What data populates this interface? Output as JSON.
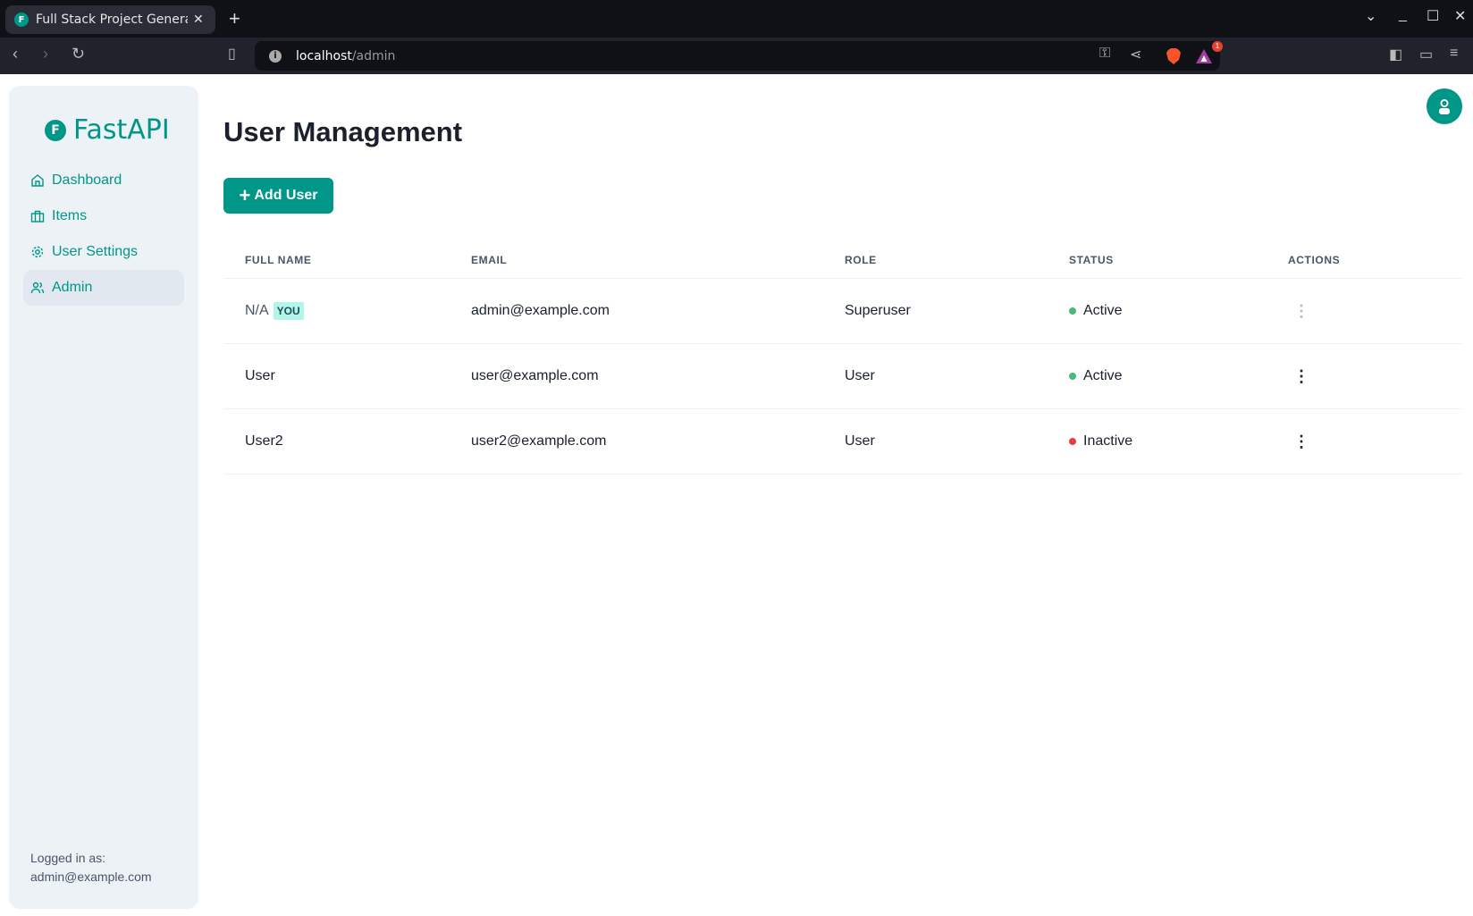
{
  "browser": {
    "tab_title": "Full Stack Project Generator",
    "url_host": "localhost",
    "url_path": "/admin",
    "notification_count": "1"
  },
  "sidebar": {
    "logo": "FastAPI",
    "items": [
      {
        "label": "Dashboard",
        "icon": "home-icon"
      },
      {
        "label": "Items",
        "icon": "briefcase-icon"
      },
      {
        "label": "User Settings",
        "icon": "gear-icon"
      },
      {
        "label": "Admin",
        "icon": "users-icon",
        "active": true
      }
    ],
    "footer_label": "Logged in as:",
    "footer_email": "admin@example.com"
  },
  "main": {
    "title": "User Management",
    "add_button": "Add User",
    "columns": [
      "FULL NAME",
      "EMAIL",
      "ROLE",
      "STATUS",
      "ACTIONS"
    ],
    "rows": [
      {
        "full_name": "N/A",
        "badge": "YOU",
        "email": "admin@example.com",
        "role": "Superuser",
        "status": "Active",
        "status_color": "#48bb78"
      },
      {
        "full_name": "User",
        "email": "user@example.com",
        "role": "User",
        "status": "Active",
        "status_color": "#48bb78"
      },
      {
        "full_name": "User2",
        "email": "user2@example.com",
        "role": "User",
        "status": "Inactive",
        "status_color": "#e53e3e"
      }
    ]
  },
  "colors": {
    "accent": "#009688"
  }
}
